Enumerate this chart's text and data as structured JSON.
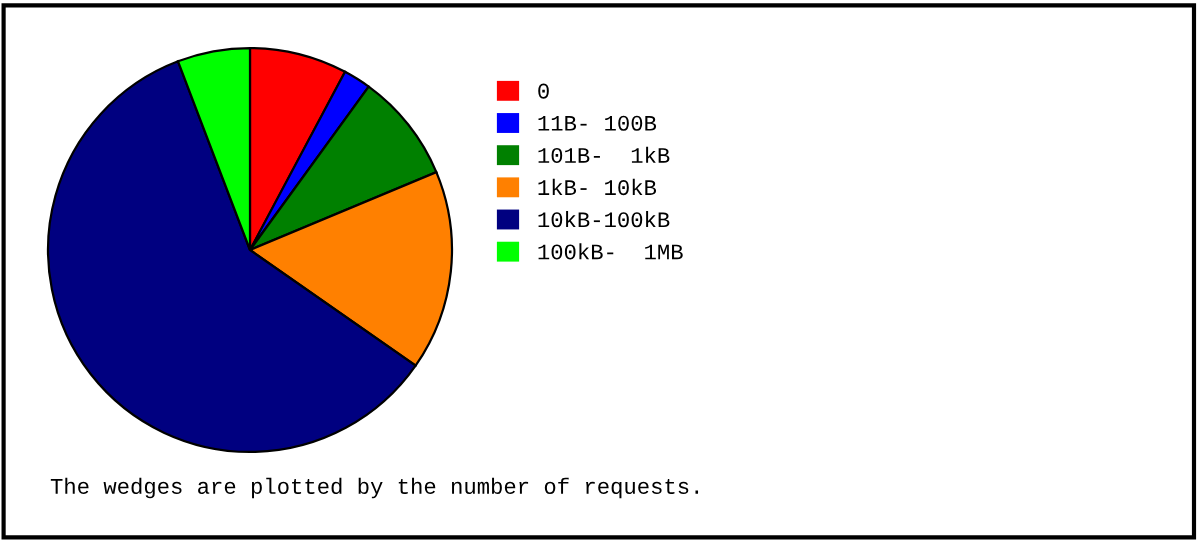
{
  "chart_data": {
    "type": "pie",
    "categories": [
      "0",
      "11B- 100B",
      "101B-  1kB",
      "1kB- 10kB",
      "10kB-100kB",
      "100kB-  1MB"
    ],
    "values": [
      7.8,
      2.2,
      8.7,
      16.0,
      59.5,
      5.8
    ],
    "colors": [
      "#ff0000",
      "#0000ff",
      "#008000",
      "#ff8000",
      "#000080",
      "#00ff00"
    ],
    "legend": "right",
    "annotations": [
      "The wedges are plotted by the number of requests."
    ]
  }
}
